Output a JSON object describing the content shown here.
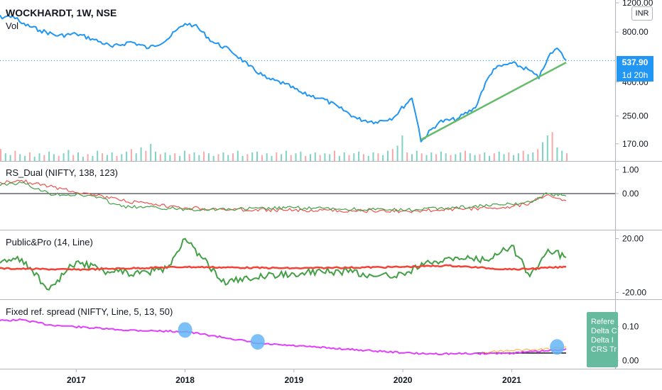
{
  "header": {
    "symbol_title": "WOCKHARDT, 1W, NSE",
    "volume_label": "Vol",
    "currency": "INR",
    "price_badge": "537.90",
    "time_badge": "1d 20h"
  },
  "panes": {
    "rs_dual": {
      "title": "RS_Dual (NIFTY, 138, 123)"
    },
    "public_pro": {
      "title": "Public&Pro (14, Line)"
    },
    "fixed_spread": {
      "title": "Fixed ref. spread (NIFTY, Line, 5, 13, 50)",
      "popup_lines": [
        "Refere",
        "Delta C",
        "Delta I",
        "CRS Tr"
      ]
    }
  },
  "colors": {
    "price_line": "#2196f3",
    "trend_line": "#66bb6a",
    "rs_green": "#43a047",
    "rs_red": "#ef5350",
    "pp_green": "#43a047",
    "pp_red": "#f44336",
    "spread_magenta": "#e040fb",
    "marker_blue": "#64b5f6",
    "popup_bg": "#66bb9f"
  },
  "chart_data": [
    {
      "type": "line",
      "title": "WOCKHARDT, 1W, NSE",
      "y_scale": "log",
      "ylim": [
        145,
        1200
      ],
      "y_ticks": [
        "1200.00",
        "800.00",
        "400.00",
        "250.00",
        "170.00"
      ],
      "x_ticks": [
        "2017",
        "2018",
        "2019",
        "2020",
        "2021"
      ],
      "series": [
        {
          "x": [
            "2016-03",
            "2016-06",
            "2016-07",
            "2016-09",
            "2016-11",
            "2017-01",
            "2017-03",
            "2017-05",
            "2017-07",
            "2017-09",
            "2017-11",
            "2018-01",
            "2018-02",
            "2018-04",
            "2018-06",
            "2018-08",
            "2018-10",
            "2018-12",
            "2019-02",
            "2019-04",
            "2019-06",
            "2019-08",
            "2019-10",
            "2019-12",
            "2020-02",
            "2020-03",
            "2020-05",
            "2020-07",
            "2020-09",
            "2020-11",
            "2021-01",
            "2021-03",
            "2021-04",
            "2021-05",
            "2021-06",
            "2021-07"
          ],
          "values": [
            960,
            1000,
            900,
            820,
            760,
            780,
            720,
            650,
            700,
            640,
            720,
            900,
            880,
            700,
            620,
            500,
            420,
            390,
            340,
            320,
            280,
            240,
            230,
            245,
            320,
            175,
            230,
            240,
            280,
            480,
            520,
            470,
            420,
            560,
            640,
            540
          ]
        }
      ],
      "trendline": {
        "from": [
          "2020-03",
          180
        ],
        "to": [
          "2021-07",
          525
        ]
      },
      "last_price": 537.9,
      "volume": {
        "label": "Vol",
        "values": [
          5,
          10,
          6,
          14,
          9,
          7,
          12,
          8,
          6,
          10,
          5,
          9,
          7,
          11,
          8,
          6,
          9,
          13,
          7,
          10,
          5,
          8,
          6,
          12,
          9,
          7,
          10,
          6,
          8,
          11,
          14,
          9,
          16,
          12,
          20,
          11,
          8,
          10,
          7,
          9,
          6,
          12,
          8,
          10,
          7,
          11,
          9,
          6,
          8,
          10,
          7,
          9,
          12,
          6,
          8,
          10,
          11,
          7,
          9,
          6,
          10,
          8,
          12,
          7,
          9,
          11,
          6,
          8,
          10,
          7,
          9,
          8,
          12,
          6,
          10,
          7,
          9,
          11,
          8,
          6,
          10,
          9,
          7,
          12,
          14,
          18,
          30,
          10,
          8,
          12,
          9,
          7,
          10,
          8,
          11,
          9,
          7,
          8,
          10,
          12,
          9,
          7,
          8,
          10,
          6,
          9,
          11,
          8,
          10,
          7,
          9,
          12,
          8,
          10,
          14,
          22,
          30,
          34,
          16,
          12,
          9
        ]
      }
    },
    {
      "type": "line",
      "title": "RS_Dual (NIFTY, 138, 123)",
      "ylim": [
        -1.4,
        1.1
      ],
      "y_ticks": [
        "1.00",
        "0.00"
      ],
      "series": [
        {
          "name": "green",
          "x": [
            "2016-03",
            "2016-07",
            "2016-10",
            "2017-03",
            "2017-06",
            "2017-10",
            "2018-01",
            "2018-06",
            "2019-01",
            "2019-06",
            "2020-01",
            "2020-06",
            "2021-01",
            "2021-03",
            "2021-05",
            "2021-07"
          ],
          "values": [
            0.35,
            0.45,
            0.0,
            -0.1,
            -0.55,
            -0.6,
            -0.65,
            -0.66,
            -0.6,
            -0.65,
            -0.7,
            -0.6,
            -0.45,
            -0.35,
            0.0,
            -0.1
          ]
        },
        {
          "name": "red",
          "x": [
            "2016-03",
            "2016-07",
            "2016-10",
            "2017-03",
            "2017-06",
            "2017-10",
            "2018-01",
            "2018-06",
            "2019-01",
            "2019-06",
            "2020-01",
            "2020-06",
            "2021-01",
            "2021-03",
            "2021-05",
            "2021-07"
          ],
          "values": [
            0.4,
            0.55,
            0.3,
            -0.05,
            -0.3,
            -0.5,
            -0.6,
            -0.68,
            -0.7,
            -0.72,
            -0.74,
            -0.68,
            -0.55,
            -0.4,
            -0.05,
            -0.3
          ]
        }
      ]
    },
    {
      "type": "line",
      "title": "Public&Pro (14, Line)",
      "ylim": [
        -24,
        24
      ],
      "y_ticks": [
        "20.00",
        "-20.00"
      ],
      "series": [
        {
          "name": "green",
          "x": [
            "2016-03",
            "2016-07",
            "2016-10",
            "2017-01",
            "2017-04",
            "2017-08",
            "2017-11",
            "2018-01",
            "2018-03",
            "2018-05",
            "2018-08",
            "2018-10",
            "2019-01",
            "2019-04",
            "2019-07",
            "2019-10",
            "2020-01",
            "2020-04",
            "2020-07",
            "2020-10",
            "2021-01",
            "2021-03",
            "2021-05",
            "2021-07"
          ],
          "values": [
            0,
            5,
            -18,
            3,
            -4,
            -6,
            -2,
            20,
            5,
            -12,
            -10,
            -8,
            -6,
            -4,
            -5,
            -8,
            -6,
            2,
            6,
            4,
            15,
            -8,
            12,
            6
          ]
        },
        {
          "name": "red",
          "x": [
            "2016-03",
            "2017-01",
            "2018-01",
            "2019-01",
            "2020-01",
            "2020-06",
            "2021-01",
            "2021-07"
          ],
          "values": [
            -2,
            -3,
            -1,
            -2,
            -1,
            0,
            -3,
            -1
          ]
        }
      ]
    },
    {
      "type": "line",
      "title": "Fixed ref. spread (NIFTY, Line, 5, 13, 50)",
      "ylim": [
        -0.02,
        0.17
      ],
      "y_ticks": [
        "0.10",
        "0.00"
      ],
      "series": [
        {
          "name": "magenta",
          "x": [
            "2016-03",
            "2016-07",
            "2016-10",
            "2017-06",
            "2018-01",
            "2018-06",
            "2018-09",
            "2019-03",
            "2019-10",
            "2020-03",
            "2020-07",
            "2021-01",
            "2021-06",
            "2021-07"
          ],
          "values": [
            0.115,
            0.12,
            0.105,
            0.09,
            0.085,
            0.065,
            0.05,
            0.04,
            0.028,
            0.02,
            0.02,
            0.022,
            0.03,
            0.035
          ]
        },
        {
          "name": "orange",
          "x": [
            "2020-09",
            "2021-01",
            "2021-04",
            "2021-07"
          ],
          "values": [
            0.022,
            0.03,
            0.032,
            0.04
          ]
        }
      ],
      "markers": [
        [
          "2018-01",
          0.09
        ],
        [
          "2018-09",
          0.055
        ],
        [
          "2021-06",
          0.04
        ]
      ]
    }
  ]
}
